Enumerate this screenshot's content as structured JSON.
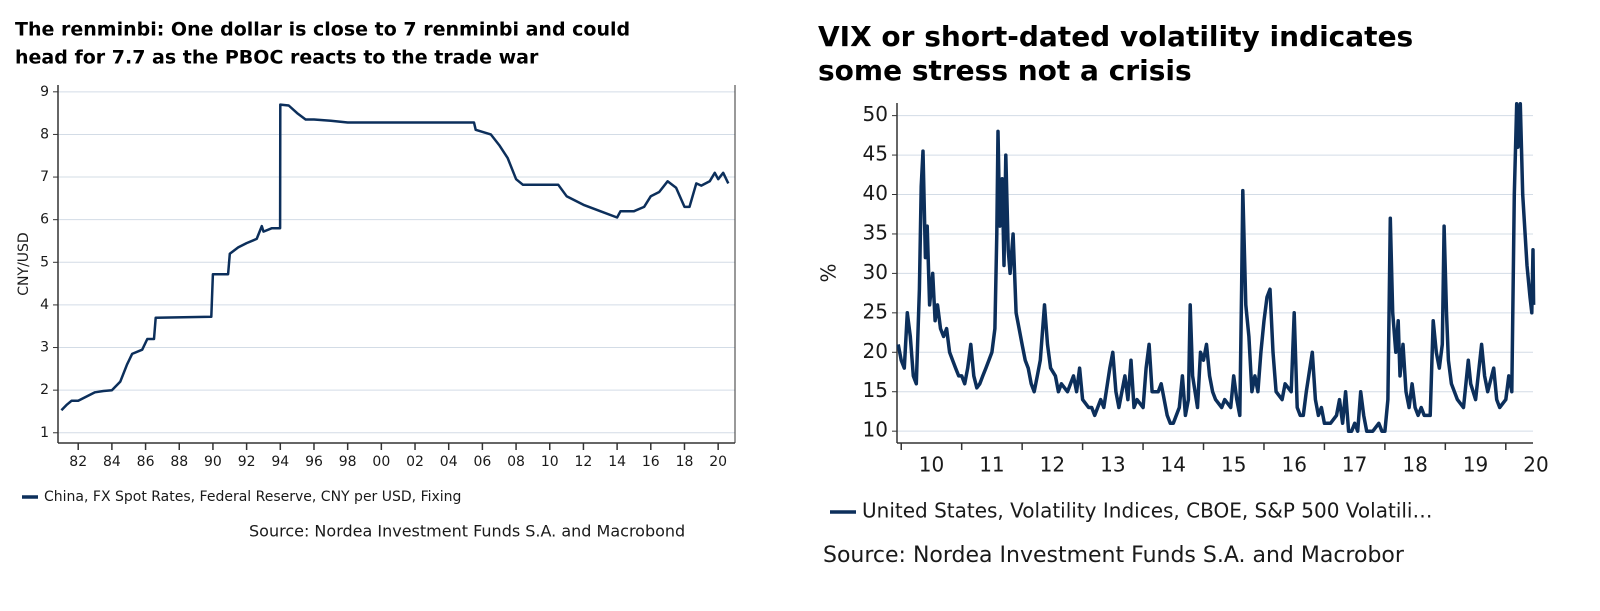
{
  "chart_data": [
    {
      "type": "line",
      "title": [
        "The renminbi: One dollar is close to 7 renminbi and could",
        "head for 7.7 as the PBOC reacts to the trade war"
      ],
      "y_label": "CNY/USD",
      "source": "Source: Nordea Investment Funds S.A. and Macrobond",
      "x": [
        1981.0,
        1981.3,
        1981.6,
        1982.0,
        1982.5,
        1983.0,
        1983.5,
        1984.0,
        1984.5,
        1984.9,
        1985.2,
        1985.8,
        1986.1,
        1986.5,
        1986.6,
        1989.9,
        1990.0,
        1990.9,
        1991.0,
        1991.5,
        1992.0,
        1992.6,
        1992.9,
        1993.0,
        1993.5,
        1993.99,
        1994.0,
        1994.5,
        1995.0,
        1995.5,
        1996.0,
        1997.0,
        1998.0,
        2005.5,
        2005.6,
        2006.5,
        2007.0,
        2007.5,
        2008.0,
        2008.4,
        2010.5,
        2011.0,
        2012.0,
        2013.0,
        2014.0,
        2014.2,
        2015.0,
        2015.6,
        2016.0,
        2016.5,
        2017.0,
        2017.5,
        2018.0,
        2018.3,
        2018.7,
        2019.0,
        2019.5,
        2019.8,
        2020.0,
        2020.3,
        2020.6
      ],
      "series": [
        {
          "name": "China, FX Spot Rates, Federal Reserve, CNY per USD, Fixing",
          "color": "#0c2f5b",
          "values": [
            1.53,
            1.65,
            1.75,
            1.75,
            1.85,
            1.95,
            1.98,
            2.0,
            2.2,
            2.6,
            2.85,
            2.95,
            3.2,
            3.2,
            3.7,
            3.72,
            4.72,
            4.72,
            5.2,
            5.35,
            5.45,
            5.55,
            5.85,
            5.72,
            5.8,
            5.8,
            8.7,
            8.68,
            8.5,
            8.35,
            8.35,
            8.32,
            8.28,
            8.28,
            8.11,
            8.0,
            7.75,
            7.45,
            6.95,
            6.82,
            6.82,
            6.55,
            6.35,
            6.2,
            6.05,
            6.2,
            6.2,
            6.3,
            6.55,
            6.65,
            6.9,
            6.75,
            6.3,
            6.3,
            6.85,
            6.8,
            6.9,
            7.1,
            6.95,
            7.1,
            6.85
          ]
        }
      ],
      "xlim": [
        1980.8,
        2021.0
      ],
      "xticks": [
        {
          "value": 1982,
          "label": "82"
        },
        {
          "value": 1984,
          "label": "84"
        },
        {
          "value": 1986,
          "label": "86"
        },
        {
          "value": 1988,
          "label": "88"
        },
        {
          "value": 1990,
          "label": "90"
        },
        {
          "value": 1992,
          "label": "92"
        },
        {
          "value": 1994,
          "label": "94"
        },
        {
          "value": 1996,
          "label": "96"
        },
        {
          "value": 1998,
          "label": "98"
        },
        {
          "value": 2000,
          "label": "00"
        },
        {
          "value": 2002,
          "label": "02"
        },
        {
          "value": 2004,
          "label": "04"
        },
        {
          "value": 2006,
          "label": "06"
        },
        {
          "value": 2008,
          "label": "08"
        },
        {
          "value": 2010,
          "label": "10"
        },
        {
          "value": 2012,
          "label": "12"
        },
        {
          "value": 2014,
          "label": "14"
        },
        {
          "value": 2016,
          "label": "16"
        },
        {
          "value": 2018,
          "label": "18"
        },
        {
          "value": 2020,
          "label": "20"
        }
      ],
      "ylim": [
        0.76,
        9.16
      ],
      "yticks": [
        1,
        2,
        3,
        4,
        5,
        6,
        7,
        8,
        9
      ],
      "grid": true
    },
    {
      "type": "line",
      "title": [
        "VIX or short-dated volatility indicates",
        "some stress not a crisis"
      ],
      "y_label": "%",
      "source": "Source: Nordea Investment Funds S.A. and Macrobor",
      "x": [
        2009.95,
        2010.0,
        2010.05,
        2010.1,
        2010.15,
        2010.2,
        2010.25,
        2010.3,
        2010.33,
        2010.36,
        2010.4,
        2010.43,
        2010.47,
        2010.52,
        2010.56,
        2010.6,
        2010.65,
        2010.7,
        2010.75,
        2010.8,
        2010.85,
        2010.9,
        2010.95,
        2011.0,
        2011.05,
        2011.1,
        2011.15,
        2011.2,
        2011.25,
        2011.3,
        2011.35,
        2011.4,
        2011.45,
        2011.5,
        2011.55,
        2011.58,
        2011.6,
        2011.63,
        2011.67,
        2011.7,
        2011.73,
        2011.77,
        2011.8,
        2011.85,
        2011.9,
        2011.95,
        2012.0,
        2012.05,
        2012.1,
        2012.15,
        2012.2,
        2012.25,
        2012.3,
        2012.37,
        2012.42,
        2012.47,
        2012.55,
        2012.6,
        2012.65,
        2012.75,
        2012.85,
        2012.9,
        2012.95,
        2013.0,
        2013.1,
        2013.15,
        2013.2,
        2013.3,
        2013.35,
        2013.45,
        2013.5,
        2013.55,
        2013.6,
        2013.7,
        2013.75,
        2013.8,
        2013.85,
        2013.9,
        2014.0,
        2014.05,
        2014.1,
        2014.15,
        2014.25,
        2014.3,
        2014.4,
        2014.45,
        2014.5,
        2014.55,
        2014.6,
        2014.65,
        2014.7,
        2014.75,
        2014.78,
        2014.82,
        2014.9,
        2014.95,
        2015.0,
        2015.05,
        2015.1,
        2015.15,
        2015.2,
        2015.3,
        2015.35,
        2015.45,
        2015.5,
        2015.55,
        2015.6,
        2015.63,
        2015.65,
        2015.7,
        2015.75,
        2015.8,
        2015.85,
        2015.9,
        2015.95,
        2016.0,
        2016.05,
        2016.1,
        2016.15,
        2016.2,
        2016.3,
        2016.35,
        2016.45,
        2016.5,
        2016.55,
        2016.6,
        2016.65,
        2016.7,
        2016.8,
        2016.85,
        2016.9,
        2016.95,
        2017.0,
        2017.1,
        2017.2,
        2017.25,
        2017.3,
        2017.35,
        2017.4,
        2017.45,
        2017.5,
        2017.55,
        2017.6,
        2017.65,
        2017.7,
        2017.8,
        2017.9,
        2017.95,
        2018.0,
        2018.05,
        2018.09,
        2018.13,
        2018.18,
        2018.22,
        2018.25,
        2018.3,
        2018.35,
        2018.4,
        2018.45,
        2018.5,
        2018.55,
        2018.6,
        2018.65,
        2018.75,
        2018.8,
        2018.85,
        2018.9,
        2018.95,
        2018.98,
        2019.02,
        2019.05,
        2019.1,
        2019.2,
        2019.3,
        2019.38,
        2019.42,
        2019.5,
        2019.6,
        2019.65,
        2019.7,
        2019.8,
        2019.85,
        2019.9,
        2020.0,
        2020.05,
        2020.1,
        2020.14,
        2020.18,
        2020.2,
        2020.24,
        2020.28,
        2020.32,
        2020.35,
        2020.4,
        2020.43,
        2020.45,
        2020.46
      ],
      "series": [
        {
          "name": "United States, Volatility Indices, CBOE, S&P 500 Volatili…",
          "color": "#0c2f5b",
          "values": [
            21,
            19,
            18,
            25,
            22,
            17,
            16,
            28,
            41,
            45.5,
            32,
            36,
            26,
            30,
            24,
            26,
            23,
            22,
            23,
            20,
            19,
            18,
            17,
            17,
            16,
            18,
            21,
            17,
            15.5,
            16,
            17,
            18,
            19,
            20,
            23,
            35,
            48,
            36,
            42,
            31,
            45,
            33,
            30,
            35,
            25,
            23,
            21,
            19,
            18,
            16,
            15,
            17,
            19,
            26,
            21,
            18,
            17,
            15,
            16,
            15,
            17,
            15,
            18,
            14,
            13,
            13,
            12,
            14,
            13,
            18,
            20,
            15,
            13,
            17,
            14,
            19,
            13,
            14,
            13,
            18,
            21,
            15,
            15,
            16,
            12,
            11,
            11,
            12,
            13,
            17,
            12,
            14,
            26,
            17,
            13,
            20,
            19,
            21,
            17,
            15,
            14,
            13,
            14,
            13,
            17,
            14,
            12,
            28,
            40.5,
            26,
            22,
            15,
            17,
            15,
            20,
            24,
            27,
            28,
            20,
            15,
            14,
            16,
            15,
            25,
            13,
            12,
            12,
            15,
            20,
            14,
            12,
            13,
            11,
            11,
            12,
            14,
            11,
            15,
            10,
            10,
            11,
            10,
            15,
            12,
            10,
            10,
            11,
            10,
            10,
            14,
            37,
            25,
            20,
            24,
            17,
            21,
            15,
            13,
            16,
            13,
            12,
            13,
            12,
            12,
            24,
            20,
            18,
            21,
            36,
            25,
            19,
            16,
            14,
            13,
            19,
            16,
            14,
            21,
            17,
            15,
            18,
            14,
            13,
            14,
            17,
            15,
            40,
            51.5,
            46,
            51.5,
            40,
            35,
            31,
            27,
            25,
            33,
            26
          ]
        }
      ],
      "xlim": [
        2009.93,
        2020.45
      ],
      "xticks": [
        {
          "value": 2010,
          "label": "10"
        },
        {
          "value": 2011,
          "label": "11"
        },
        {
          "value": 2012,
          "label": "12"
        },
        {
          "value": 2013,
          "label": "13"
        },
        {
          "value": 2014,
          "label": "14"
        },
        {
          "value": 2015,
          "label": "15"
        },
        {
          "value": 2016,
          "label": "16"
        },
        {
          "value": 2017,
          "label": "17"
        },
        {
          "value": 2018,
          "label": "18"
        },
        {
          "value": 2019,
          "label": "19"
        },
        {
          "value": 2020,
          "label": "20"
        }
      ],
      "ylim": [
        8.5,
        51.6
      ],
      "yticks": [
        10,
        15,
        20,
        25,
        30,
        35,
        40,
        45,
        50
      ],
      "grid": true
    }
  ]
}
